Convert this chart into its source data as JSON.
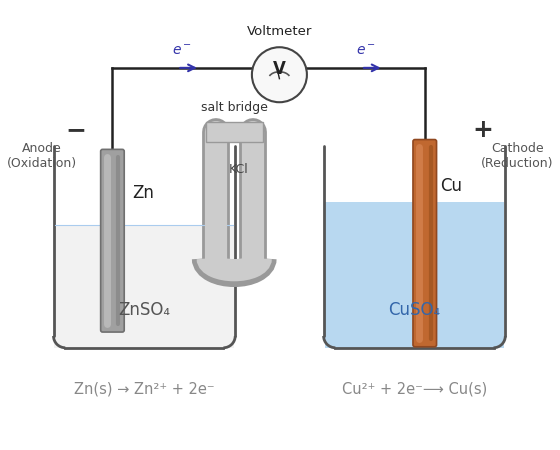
{
  "background_color": "#ffffff",
  "electron_arrow_color": "#3333aa",
  "wire_color": "#222222",
  "solution_zn_color": "#f2f2f2",
  "solution_cu_color": "#b8d8f0",
  "beaker_edge_color": "#555555",
  "salt_bridge_color": "#cccccc",
  "salt_bridge_edge": "#999999",
  "voltmeter_color": "#f8f8f8",
  "voltmeter_edge": "#444444",
  "anode_label": "Anode\n(Oxidation)",
  "cathode_label": "Cathode\n(Reduction)",
  "zn_label": "Zn",
  "cu_label": "Cu",
  "kcl_label": "KCl",
  "salt_bridge_label": "salt bridge",
  "voltmeter_label": "Voltmeter",
  "voltmeter_symbol": "V",
  "znso4_label": "ZnSO₄",
  "cuso4_label": "CuSO₄",
  "anode_reaction": "Zn(s) → Zn²⁺ + 2e⁻",
  "cathode_reaction": "Cu²⁺ + 2e⁻⟶ Cu(s)",
  "minus_sign": "−",
  "plus_sign": "+"
}
